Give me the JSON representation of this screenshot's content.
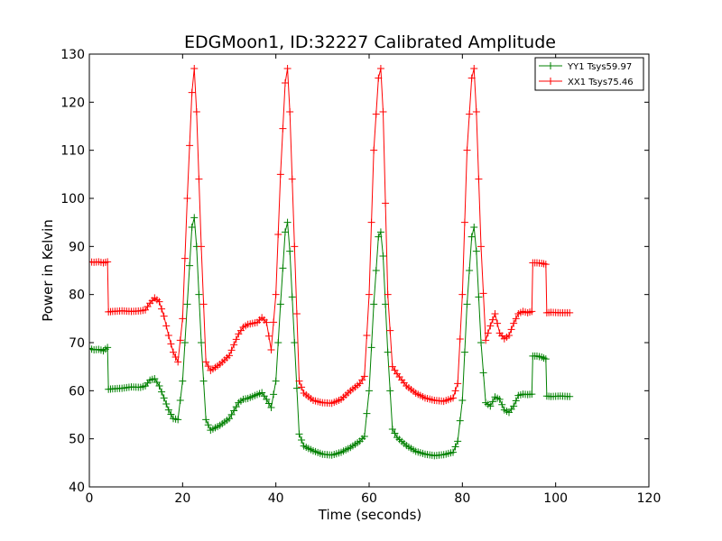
{
  "chart_data": {
    "type": "line",
    "title": "EDGMoon1, ID:32227 Calibrated Amplitude",
    "xlabel": "Time (seconds)",
    "ylabel": "Power in Kelvin",
    "xlim": [
      0,
      120
    ],
    "ylim": [
      40,
      130
    ],
    "xticks": [
      0,
      20,
      40,
      60,
      80,
      100,
      120
    ],
    "yticks": [
      40,
      50,
      60,
      70,
      80,
      90,
      100,
      110,
      120,
      130
    ],
    "grid": false,
    "legend_position": "top-right",
    "marker": "plus",
    "series": [
      {
        "name": "YY1 Tsys59.97",
        "color": "#008000",
        "x": [
          0,
          1,
          2,
          3,
          3.9,
          4.1,
          5,
          7,
          9,
          11,
          12,
          13,
          14,
          15,
          16,
          17,
          18,
          19,
          20,
          21,
          22,
          22.5,
          23,
          24,
          25,
          26,
          28,
          30,
          32,
          33,
          34,
          36,
          37,
          38,
          39,
          40,
          41,
          42,
          42.5,
          43,
          44,
          45,
          46,
          48,
          50,
          52,
          54,
          56,
          58,
          59,
          60,
          61,
          62,
          62.5,
          63,
          64,
          65,
          66,
          68,
          70,
          72,
          74,
          76,
          78,
          79,
          80,
          81,
          82,
          82.5,
          83,
          84,
          85,
          86,
          87,
          88,
          89,
          90,
          91,
          92,
          93,
          94,
          94.9,
          95.1,
          96,
          97,
          97.9,
          98.1,
          99,
          101,
          103
        ],
        "y": [
          68.8,
          68.5,
          68.6,
          68.3,
          69,
          60.3,
          60.4,
          60.5,
          60.8,
          60.7,
          61,
          62.2,
          62.5,
          61,
          58.5,
          56,
          54.2,
          54,
          62,
          78,
          94,
          96,
          90,
          70,
          54,
          51.8,
          52.8,
          54.2,
          57.5,
          58.2,
          58.4,
          59.2,
          59.6,
          58.2,
          56.5,
          62,
          78,
          93,
          95,
          89,
          70,
          51,
          48.5,
          47.5,
          46.8,
          46.6,
          47.2,
          48.2,
          49.5,
          50.5,
          60,
          78,
          92,
          93,
          88,
          68,
          52,
          50.3,
          48.6,
          47.4,
          46.8,
          46.5,
          46.7,
          47.2,
          49.5,
          58,
          78,
          92,
          94,
          89,
          70,
          57.5,
          56.8,
          58.7,
          58.2,
          56,
          55.5,
          56.8,
          59,
          59.3,
          59.2,
          59.3,
          67.2,
          67.2,
          67,
          66.6,
          58.9,
          58.8,
          58.9,
          58.8
        ]
      },
      {
        "name": "XX1 Tsys75.46",
        "color": "#ff0000",
        "x": [
          0,
          1,
          2,
          3,
          3.9,
          4.1,
          5,
          7,
          9,
          11,
          12,
          13,
          14,
          15,
          16,
          17,
          18,
          19,
          20,
          21,
          22,
          22.5,
          23,
          24,
          25,
          26,
          28,
          30,
          32,
          33,
          34,
          36,
          37,
          38,
          39,
          40,
          41,
          42,
          42.5,
          43,
          44,
          45,
          46,
          48,
          50,
          52,
          54,
          56,
          58,
          59,
          60,
          61,
          62,
          62.5,
          63,
          64,
          65,
          66,
          68,
          70,
          72,
          74,
          76,
          78,
          79,
          80,
          81,
          82,
          82.5,
          83,
          84,
          85,
          86,
          87,
          88,
          89,
          90,
          91,
          92,
          93,
          94,
          94.9,
          95.1,
          96,
          97,
          97.9,
          98.1,
          99,
          101,
          103
        ],
        "y": [
          86.8,
          86.7,
          86.8,
          86.6,
          86.8,
          76.4,
          76.5,
          76.6,
          76.5,
          76.6,
          76.8,
          78.2,
          79.3,
          78.5,
          75.5,
          71.5,
          68,
          66,
          75,
          100,
          122,
          127,
          118,
          90,
          66,
          64.2,
          65.5,
          67.3,
          71.8,
          73.2,
          73.8,
          74.2,
          75.2,
          74.2,
          68.5,
          80,
          105,
          124,
          127,
          118,
          90,
          62,
          59.5,
          58,
          57.5,
          57.4,
          58.2,
          60,
          61.5,
          63,
          80,
          110,
          125,
          127,
          118,
          80,
          65,
          63.5,
          61,
          59.5,
          58.5,
          58,
          57.8,
          58.5,
          61.5,
          80,
          110,
          125,
          127,
          118,
          90,
          70.5,
          73.5,
          76,
          72,
          70.8,
          71.5,
          74,
          76,
          76.5,
          76.2,
          76.5,
          86.6,
          86.6,
          86.5,
          86.3,
          76.2,
          76.3,
          76.2,
          76.2
        ]
      }
    ]
  }
}
